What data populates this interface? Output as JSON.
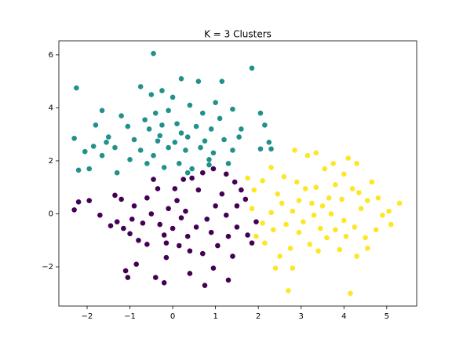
{
  "chart_data": {
    "type": "scatter",
    "title": "K  = 3 Clusters",
    "xlim": [
      -2.66,
      5.7
    ],
    "ylim": [
      -3.48,
      6.53
    ],
    "xticks": [
      {
        "value": -2,
        "label": "−2"
      },
      {
        "value": -1,
        "label": "−1"
      },
      0,
      1,
      2,
      3,
      4,
      5
    ],
    "yticks": [
      {
        "value": -2,
        "label": "−2"
      },
      0,
      2,
      4,
      6
    ],
    "series": [
      {
        "color": "#21918c",
        "x": [
          -2.25,
          -0.45,
          1.85,
          0.2,
          0.6,
          1.15,
          -0.75,
          -0.25,
          -0.5,
          0.0,
          1.0,
          -1.65,
          -1.2,
          -0.4,
          -0.1,
          0.4,
          0.7,
          1.4,
          2.05,
          -1.8,
          -1.05,
          -0.55,
          -0.25,
          0.1,
          0.55,
          0.9,
          1.6,
          2.15,
          -2.3,
          -1.5,
          -0.9,
          -0.35,
          0.05,
          0.35,
          0.75,
          1.2,
          1.55,
          2.25,
          -2.05,
          -1.85,
          -1.65,
          -1.35,
          -0.75,
          -0.45,
          -0.1,
          0.3,
          0.65,
          0.95,
          1.4,
          2.05,
          2.3,
          -2.2,
          -1.95,
          -1.3,
          -1.0,
          -0.6,
          -0.2,
          0.15,
          0.45,
          0.85,
          1.3,
          -0.3,
          0.2,
          -0.65,
          1.1,
          -1.55,
          0.85,
          0.35
        ],
        "values": [
          4.75,
          6.05,
          5.5,
          5.1,
          5.0,
          5.0,
          4.8,
          4.65,
          4.5,
          4.4,
          4.2,
          3.9,
          3.7,
          3.8,
          3.9,
          4.1,
          3.8,
          3.95,
          3.8,
          3.35,
          3.3,
          3.2,
          3.35,
          3.4,
          3.3,
          3.2,
          3.2,
          3.35,
          2.85,
          2.9,
          2.8,
          2.75,
          2.7,
          2.9,
          2.75,
          2.8,
          2.9,
          2.7,
          2.35,
          2.55,
          2.2,
          2.5,
          2.4,
          2.2,
          2.5,
          2.4,
          2.5,
          2.3,
          2.4,
          2.45,
          2.45,
          1.65,
          1.7,
          1.55,
          2.05,
          1.9,
          1.75,
          1.9,
          1.7,
          1.85,
          1.9,
          2.95,
          3.05,
          3.55,
          3.6,
          2.7,
          2.05,
          1.55
        ]
      },
      {
        "color": "#440154",
        "x": [
          -2.3,
          -2.2,
          -1.95,
          -1.7,
          -1.35,
          -1.2,
          -1.45,
          -1.3,
          -1.15,
          -1.0,
          -0.8,
          -0.9,
          -0.6,
          -0.35,
          -0.5,
          -0.3,
          -0.2,
          -0.1,
          0.1,
          0.25,
          0.45,
          0.7,
          0.95,
          1.25,
          1.45,
          1.6,
          1.7,
          1.5,
          1.25,
          1.0,
          0.8,
          0.55,
          0.35,
          0.2,
          0.0,
          -0.15,
          0.15,
          0.4,
          0.7,
          1.05,
          1.3,
          1.5,
          1.75,
          1.85,
          1.95,
          1.4,
          0.95,
          1.3,
          0.75,
          0.4,
          -0.15,
          -0.2,
          -0.4,
          -0.85,
          -1.1,
          -1.05,
          -0.6,
          -0.95,
          0.6,
          0.9,
          -0.45,
          0.05,
          1.15,
          -0.7,
          0.3
        ],
        "values": [
          0.15,
          0.45,
          0.5,
          -0.05,
          0.7,
          0.55,
          -0.45,
          -0.3,
          -0.55,
          -0.75,
          -1.0,
          0.3,
          0.6,
          0.95,
          0.0,
          -0.4,
          -0.8,
          0.2,
          0.5,
          1.3,
          1.35,
          1.55,
          1.7,
          1.5,
          1.2,
          0.9,
          0.55,
          0.3,
          -0.05,
          0.3,
          -0.2,
          -0.5,
          -0.85,
          -0.15,
          -0.55,
          -1.1,
          -1.2,
          -1.4,
          -1.5,
          -1.2,
          -0.85,
          -0.5,
          -0.8,
          -1.1,
          -0.3,
          -1.6,
          -2.05,
          -2.5,
          -2.7,
          -2.25,
          -1.65,
          -2.6,
          -2.4,
          -1.9,
          -2.15,
          -2.4,
          -1.15,
          -0.2,
          0.9,
          -0.7,
          1.3,
          0.95,
          0.75,
          -0.35,
          0.1
        ]
      },
      {
        "color": "#fde725",
        "x": [
          1.75,
          1.9,
          2.1,
          2.3,
          2.45,
          2.6,
          2.85,
          3.15,
          3.35,
          3.55,
          3.75,
          4.0,
          4.1,
          4.3,
          4.35,
          4.55,
          4.8,
          5.05,
          5.3,
          5.1,
          4.75,
          4.5,
          4.25,
          4.0,
          3.8,
          3.6,
          3.4,
          3.2,
          2.95,
          2.75,
          2.5,
          2.4,
          2.8,
          2.7,
          4.15,
          4.3,
          4.55,
          3.9,
          3.05,
          2.8,
          2.55,
          2.3,
          2.1,
          1.95,
          2.15,
          3.25,
          3.5,
          3.7,
          3.95,
          4.2,
          4.65,
          3.35,
          3.1,
          2.9,
          3.8,
          4.9,
          2.35,
          3.3,
          2.65,
          4.4,
          3.45,
          4.05,
          1.85,
          2.95,
          3.65
        ],
        "values": [
          1.35,
          0.9,
          1.25,
          1.75,
          0.75,
          1.4,
          2.4,
          2.2,
          2.3,
          1.7,
          1.9,
          1.5,
          2.1,
          1.9,
          0.8,
          0.5,
          0.6,
          0.1,
          0.4,
          -0.4,
          -0.6,
          -0.9,
          -0.5,
          -0.25,
          -0.6,
          -0.9,
          -1.4,
          -1.15,
          -0.7,
          -1.3,
          -1.6,
          -2.05,
          -2.05,
          -2.9,
          -3.0,
          -1.6,
          -1.3,
          -1.35,
          -0.3,
          0.1,
          0.4,
          0.05,
          -0.35,
          -0.85,
          -1.1,
          0.4,
          0.3,
          0.0,
          0.55,
          0.95,
          1.2,
          1.0,
          0.95,
          1.2,
          1.1,
          -0.05,
          -0.6,
          -0.05,
          -0.4,
          0.2,
          -0.55,
          -0.85,
          0.2,
          0.5,
          0.6
        ]
      }
    ]
  }
}
